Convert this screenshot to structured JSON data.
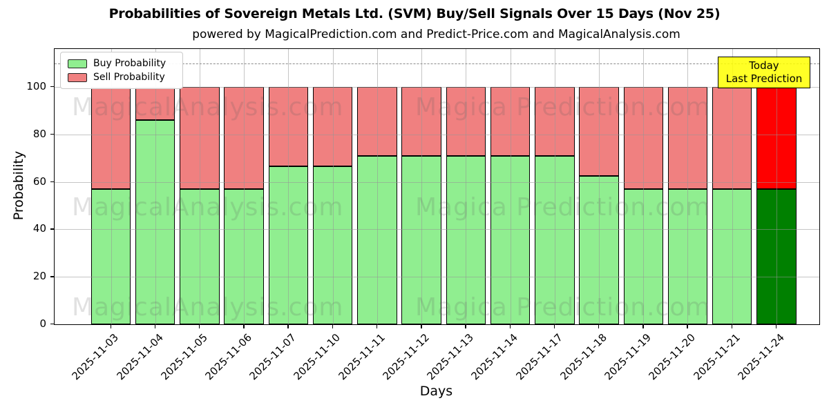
{
  "title": "Probabilities of Sovereign Metals Ltd. (SVM) Buy/Sell Signals Over 15 Days (Nov 25)",
  "subtitle": "powered by MagicalPrediction.com and Predict-Price.com and MagicalAnalysis.com",
  "annotation": {
    "line1": "Today",
    "line2": "Last Prediction"
  },
  "legend": {
    "items": [
      {
        "label": "Buy Probability",
        "color": "#90ee90"
      },
      {
        "label": "Sell Probability",
        "color": "#f08080"
      }
    ]
  },
  "watermarks": {
    "left_text": "MagicalAnalysis.com",
    "right_text": "Magica Prediction.com"
  },
  "colors": {
    "buy": "#90ee90",
    "sell": "#f08080",
    "today_buy": "#008000",
    "today_sell": "#ff0000",
    "bar_edge": "#000000",
    "annotation_bg": "#ffff00",
    "dashed_line": "#8a8a8a",
    "grid": "#b0b0b0"
  },
  "chart_data": {
    "type": "bar",
    "stacked": true,
    "title": "Probabilities of Sovereign Metals Ltd. (SVM) Buy/Sell Signals Over 15 Days (Nov 25)",
    "xlabel": "Days",
    "ylabel": "Probability",
    "categories": [
      "2025-11-03",
      "2025-11-04",
      "2025-11-05",
      "2025-11-06",
      "2025-11-07",
      "2025-11-10",
      "2025-11-11",
      "2025-11-12",
      "2025-11-13",
      "2025-11-14",
      "2025-11-17",
      "2025-11-18",
      "2025-11-19",
      "2025-11-20",
      "2025-11-21",
      "2025-11-24"
    ],
    "series": [
      {
        "name": "Buy Probability",
        "values": [
          57,
          86,
          57,
          57,
          66.7,
          66.7,
          71,
          71,
          71,
          71,
          71,
          62.5,
          57,
          57,
          57,
          57
        ]
      },
      {
        "name": "Sell Probability",
        "values": [
          43,
          14,
          43,
          43,
          33.3,
          33.3,
          29,
          29,
          29,
          29,
          29,
          37.5,
          43,
          43,
          43,
          43
        ]
      }
    ],
    "today_index": 15,
    "yticks": [
      0,
      20,
      40,
      60,
      80,
      100
    ],
    "ylim": [
      0,
      116
    ],
    "dashed_line_y": 110,
    "grid": true,
    "legend_position": "upper left",
    "x_tick_rotation": 45
  }
}
